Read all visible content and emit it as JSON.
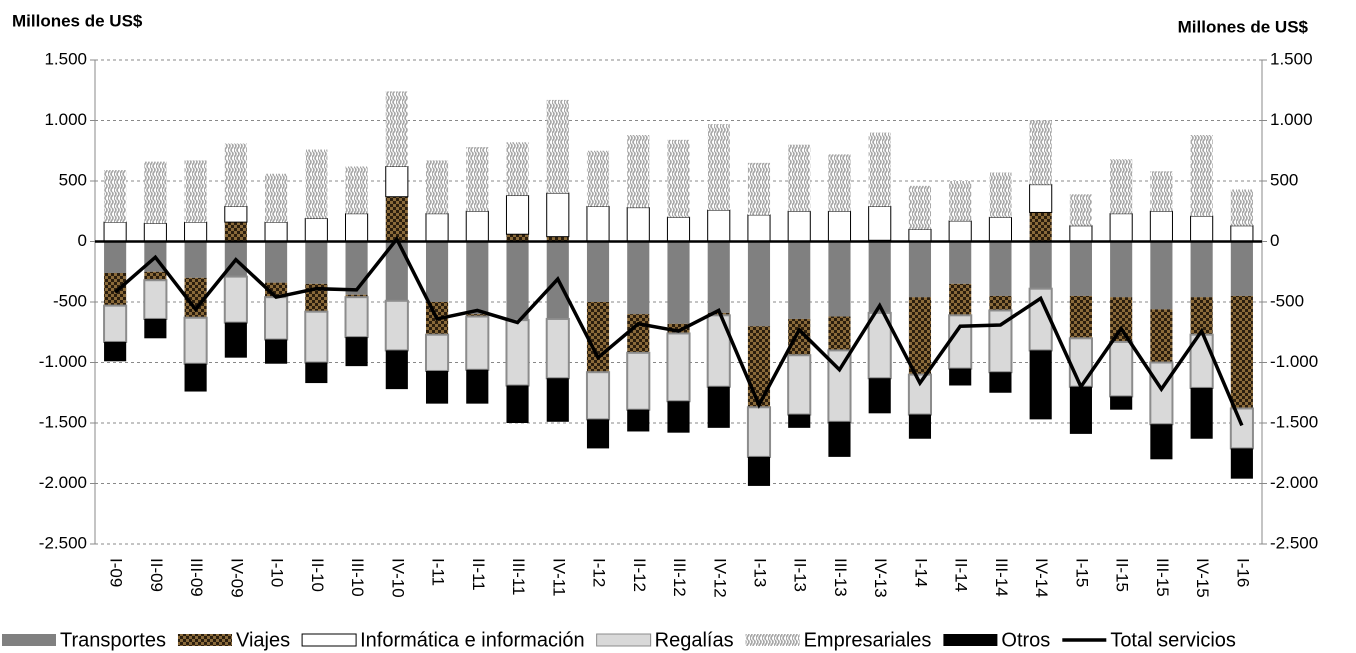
{
  "chart_data": {
    "type": "bar",
    "stacked": true,
    "y_label": "Millones de US$",
    "y2_label": "Millones de US$",
    "categories": [
      "I-09",
      "II-09",
      "III-09",
      "IV-09",
      "I-10",
      "II-10",
      "III-10",
      "IV-10",
      "I-11",
      "II-11",
      "III-11",
      "IV-11",
      "I-12",
      "II-12",
      "III-12",
      "IV-12",
      "I-13",
      "II-13",
      "III-13",
      "IV-13",
      "I-14",
      "II-14",
      "III-14",
      "IV-14",
      "I-15",
      "II-15",
      "III-15",
      "IV-15",
      "I-16"
    ],
    "series": [
      {
        "name": "Transportes",
        "color": "#808080",
        "values": [
          -260,
          -250,
          -300,
          -290,
          -340,
          -350,
          -440,
          -490,
          -500,
          -600,
          -650,
          -640,
          -500,
          -600,
          -680,
          -590,
          -700,
          -640,
          -620,
          -590,
          -460,
          -350,
          -450,
          -390,
          -450,
          -460,
          -560,
          -460,
          -450
        ]
      },
      {
        "name": "Viajes",
        "color": "#8a6a3a",
        "values": [
          -270,
          -70,
          -330,
          160,
          -120,
          -230,
          -20,
          370,
          -270,
          -20,
          60,
          40,
          -580,
          -320,
          -80,
          -20,
          -670,
          -300,
          -280,
          10,
          -640,
          -260,
          -120,
          240,
          -350,
          -370,
          -440,
          -310,
          -930
        ]
      },
      {
        "name": "Informática e información",
        "color": "#ffffff",
        "values": [
          160,
          150,
          160,
          130,
          160,
          190,
          230,
          250,
          230,
          250,
          320,
          360,
          290,
          280,
          200,
          260,
          220,
          250,
          250,
          280,
          100,
          170,
          200,
          230,
          130,
          230,
          250,
          210,
          130
        ]
      },
      {
        "name": "Regalías",
        "color": "#d9d9d9",
        "values": [
          -300,
          -320,
          -380,
          -380,
          -350,
          -420,
          -330,
          -410,
          -300,
          -440,
          -540,
          -490,
          -390,
          -470,
          -560,
          -590,
          -410,
          -490,
          -590,
          -540,
          -330,
          -440,
          -510,
          -510,
          -400,
          -450,
          -510,
          -440,
          -330
        ]
      },
      {
        "name": "Empresariales",
        "color": "#a6a6a6",
        "values": [
          430,
          510,
          510,
          520,
          400,
          570,
          390,
          620,
          440,
          530,
          440,
          770,
          460,
          600,
          640,
          710,
          430,
          550,
          470,
          610,
          360,
          330,
          370,
          530,
          260,
          450,
          330,
          670,
          300
        ]
      },
      {
        "name": "Otros",
        "color": "#000000",
        "values": [
          -160,
          -160,
          -230,
          -290,
          -200,
          -170,
          -240,
          -320,
          -270,
          -280,
          -310,
          -360,
          -240,
          -180,
          -260,
          -340,
          -240,
          -110,
          -290,
          -290,
          -200,
          -140,
          -170,
          -570,
          -390,
          -110,
          -290,
          -420,
          -250
        ]
      },
      {
        "name": "Total servicios",
        "type": "line",
        "color": "#000000",
        "values": [
          -420,
          -130,
          -560,
          -150,
          -460,
          -390,
          -400,
          20,
          -640,
          -570,
          -670,
          -310,
          -960,
          -680,
          -740,
          -570,
          -1350,
          -730,
          -1060,
          -530,
          -1170,
          -700,
          -690,
          -470,
          -1200,
          -720,
          -1220,
          -740,
          -1520
        ]
      }
    ],
    "ylim": [
      -2500,
      1500
    ],
    "yticks": [
      {
        "value": -2500,
        "label": "-2.500"
      },
      {
        "value": -2000,
        "label": "-2.000"
      },
      {
        "value": -1500,
        "label": "-1.500"
      },
      {
        "value": -1000,
        "label": "-1.000"
      },
      -500,
      0,
      500,
      {
        "value": 1000,
        "label": "1.000"
      },
      {
        "value": 1500,
        "label": "1.500"
      }
    ],
    "y2lim": [
      -2500,
      1500
    ],
    "y2ticks": [
      {
        "value": -2500,
        "label": "-2.500"
      },
      {
        "value": -2000,
        "label": "-2.000"
      },
      {
        "value": -1500,
        "label": "-1.500"
      },
      {
        "value": -1000,
        "label": "-1.000"
      },
      -500,
      0,
      500,
      {
        "value": 1000,
        "label": "1.000"
      },
      {
        "value": 1500,
        "label": "1.500"
      }
    ],
    "grid": true,
    "legend": "bottom"
  }
}
